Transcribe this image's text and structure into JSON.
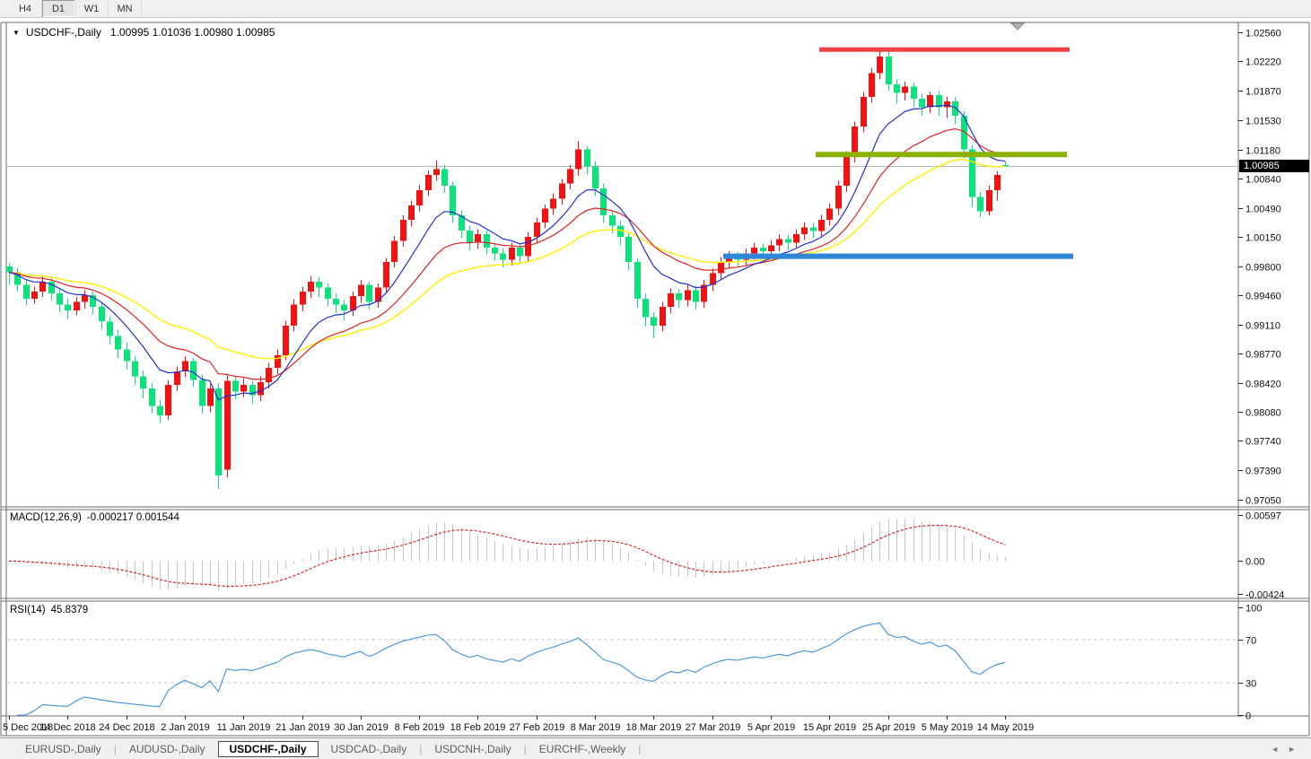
{
  "toolbar": {
    "buttons": [
      {
        "label": "H4",
        "active": false
      },
      {
        "label": "D1",
        "active": true
      },
      {
        "label": "W1",
        "active": false
      },
      {
        "label": "MN",
        "active": false
      }
    ]
  },
  "icons": {
    "collapse": "▼",
    "scroll_left": "◄",
    "scroll_right": "►"
  },
  "chart": {
    "title": "USDCHF-,Daily",
    "ohlc_text": "1.00995 1.01036 1.00980 1.00985",
    "current_price_label": "1.00985"
  },
  "chart_data": {
    "type": "candlestick",
    "symbol": "USDCHF-",
    "timeframe": "Daily",
    "ohlc_current": {
      "open": "1.00995",
      "high": "1.01036",
      "low": "1.00980",
      "close": "1.00985"
    },
    "ylim": [
      0.9696,
      1.0268
    ],
    "colors": {
      "up": "#f31212",
      "down": "#0ae27b"
    },
    "y_ticks": [
      "1.02560",
      "1.02220",
      "1.01870",
      "1.01530",
      "1.01180",
      "1.00840",
      "1.00490",
      "1.00150",
      "0.99800",
      "0.99460",
      "0.99110",
      "0.98770",
      "0.98420",
      "0.98080",
      "0.97740",
      "0.97390",
      "0.97050"
    ],
    "x_ticks": [
      {
        "bar": 0,
        "label": "5 Dec 2018"
      },
      {
        "bar": 7,
        "label": "14 Dec 2018"
      },
      {
        "bar": 14,
        "label": "24 Dec 2018"
      },
      {
        "bar": 21,
        "label": "2 Jan 2019"
      },
      {
        "bar": 28,
        "label": "11 Jan 2019"
      },
      {
        "bar": 35,
        "label": "21 Jan 2019"
      },
      {
        "bar": 42,
        "label": "30 Jan 2019"
      },
      {
        "bar": 49,
        "label": "8 Feb 2019"
      },
      {
        "bar": 56,
        "label": "18 Feb 2019"
      },
      {
        "bar": 63,
        "label": "27 Feb 2019"
      },
      {
        "bar": 70,
        "label": "8 Mar 2019"
      },
      {
        "bar": 77,
        "label": "18 Mar 2019"
      },
      {
        "bar": 84,
        "label": "27 Mar 2019"
      },
      {
        "bar": 91,
        "label": "5 Apr 2019"
      },
      {
        "bar": 98,
        "label": "15 Apr 2019"
      },
      {
        "bar": 105,
        "label": "25 Apr 2019"
      },
      {
        "bar": 112,
        "label": "5 May 2019"
      },
      {
        "bar": 119,
        "label": "14 May 2019"
      }
    ],
    "candles": [
      [
        0.998,
        0.9984,
        0.9958,
        0.9973
      ],
      [
        0.9973,
        0.9978,
        0.995,
        0.9958
      ],
      [
        0.9958,
        0.9964,
        0.9934,
        0.9942
      ],
      [
        0.9942,
        0.9956,
        0.9936,
        0.995
      ],
      [
        0.995,
        0.9968,
        0.9944,
        0.9962
      ],
      [
        0.9962,
        0.9966,
        0.994,
        0.9948
      ],
      [
        0.9948,
        0.9953,
        0.9926,
        0.9935
      ],
      [
        0.9935,
        0.9941,
        0.9918,
        0.9928
      ],
      [
        0.9928,
        0.9944,
        0.9922,
        0.9938
      ],
      [
        0.9938,
        0.9952,
        0.993,
        0.9946
      ],
      [
        0.9946,
        0.995,
        0.9924,
        0.9932
      ],
      [
        0.9932,
        0.9938,
        0.9906,
        0.9915
      ],
      [
        0.9915,
        0.9921,
        0.9888,
        0.9898
      ],
      [
        0.9898,
        0.9905,
        0.9872,
        0.9882
      ],
      [
        0.9882,
        0.989,
        0.9858,
        0.9868
      ],
      [
        0.9868,
        0.9874,
        0.984,
        0.985
      ],
      [
        0.985,
        0.9857,
        0.9824,
        0.9836
      ],
      [
        0.9836,
        0.9842,
        0.9806,
        0.9815
      ],
      [
        0.9815,
        0.9822,
        0.9795,
        0.9804
      ],
      [
        0.9804,
        0.9846,
        0.9799,
        0.984
      ],
      [
        0.984,
        0.9862,
        0.9833,
        0.9856
      ],
      [
        0.9856,
        0.9874,
        0.9849,
        0.9868
      ],
      [
        0.9868,
        0.9872,
        0.9838,
        0.9846
      ],
      [
        0.9846,
        0.9852,
        0.9806,
        0.9815
      ],
      [
        0.9815,
        0.9841,
        0.9808,
        0.9836
      ],
      [
        0.9836,
        0.9842,
        0.9717,
        0.9733
      ],
      [
        0.974,
        0.9851,
        0.9731,
        0.9845
      ],
      [
        0.9845,
        0.985,
        0.9823,
        0.9832
      ],
      [
        0.9832,
        0.9848,
        0.9825,
        0.984
      ],
      [
        0.984,
        0.9845,
        0.9818,
        0.9828
      ],
      [
        0.9828,
        0.985,
        0.9821,
        0.9843
      ],
      [
        0.9843,
        0.9866,
        0.9836,
        0.986
      ],
      [
        0.986,
        0.9882,
        0.9853,
        0.9875
      ],
      [
        0.9875,
        0.9916,
        0.9869,
        0.991
      ],
      [
        0.991,
        0.9941,
        0.9903,
        0.9935
      ],
      [
        0.9935,
        0.9956,
        0.9927,
        0.995
      ],
      [
        0.995,
        0.9968,
        0.9943,
        0.9962
      ],
      [
        0.9962,
        0.9967,
        0.9944,
        0.9955
      ],
      [
        0.9955,
        0.996,
        0.9933,
        0.9942
      ],
      [
        0.9942,
        0.9948,
        0.9925,
        0.9935
      ],
      [
        0.9935,
        0.994,
        0.9916,
        0.9928
      ],
      [
        0.9928,
        0.995,
        0.9921,
        0.9945
      ],
      [
        0.9945,
        0.9964,
        0.9937,
        0.9958
      ],
      [
        0.9958,
        0.9962,
        0.9929,
        0.9938
      ],
      [
        0.9938,
        0.996,
        0.9931,
        0.9955
      ],
      [
        0.9955,
        0.999,
        0.9949,
        0.9985
      ],
      [
        0.9985,
        1.0016,
        0.9979,
        1.001
      ],
      [
        1.001,
        1.004,
        1.0003,
        1.0035
      ],
      [
        1.0035,
        1.0058,
        1.0027,
        1.0052
      ],
      [
        1.0052,
        1.0076,
        1.0045,
        1.007
      ],
      [
        1.007,
        1.0093,
        1.0063,
        1.0088
      ],
      [
        1.0088,
        1.0105,
        1.0081,
        1.0095
      ],
      [
        1.0095,
        1.01,
        1.0067,
        1.0075
      ],
      [
        1.0075,
        1.008,
        1.0031,
        1.004
      ],
      [
        1.004,
        1.0046,
        1.0013,
        1.0022
      ],
      [
        1.0022,
        1.0028,
        0.9999,
        1.0008
      ],
      [
        1.0008,
        1.0024,
        1.0001,
        1.0018
      ],
      [
        1.0018,
        1.0023,
        0.9994,
        1.0002
      ],
      [
        1.0002,
        1.0008,
        0.9987,
        0.9995
      ],
      [
        0.9995,
        1.0001,
        0.9979,
        0.9988
      ],
      [
        0.9988,
        1.0008,
        0.9981,
        1.0002
      ],
      [
        1.0002,
        1.0007,
        0.9983,
        0.9992
      ],
      [
        0.9992,
        1.002,
        0.9985,
        1.0015
      ],
      [
        1.0015,
        1.0037,
        1.0007,
        1.0032
      ],
      [
        1.0032,
        1.0053,
        1.0025,
        1.0048
      ],
      [
        1.0048,
        1.0066,
        1.0041,
        1.006
      ],
      [
        1.006,
        1.0083,
        1.0053,
        1.0078
      ],
      [
        1.0078,
        1.01,
        1.0071,
        1.0095
      ],
      [
        1.0095,
        1.0128,
        1.0087,
        1.0118
      ],
      [
        1.0118,
        1.0122,
        1.0089,
        1.0098
      ],
      [
        1.0098,
        1.0104,
        1.0063,
        1.0072
      ],
      [
        1.0072,
        1.0078,
        1.0031,
        1.004
      ],
      [
        1.004,
        1.0046,
        1.0019,
        1.0028
      ],
      [
        1.0028,
        1.0034,
        1.0005,
        1.0015
      ],
      [
        1.0015,
        1.002,
        0.9975,
        0.9985
      ],
      [
        0.9985,
        0.999,
        0.9931,
        0.9942
      ],
      [
        0.9942,
        0.9948,
        0.9909,
        0.992
      ],
      [
        0.992,
        0.9926,
        0.9895,
        0.991
      ],
      [
        0.991,
        0.9938,
        0.9903,
        0.9932
      ],
      [
        0.9932,
        0.9954,
        0.9925,
        0.9948
      ],
      [
        0.9948,
        0.9953,
        0.9931,
        0.994
      ],
      [
        0.994,
        0.9958,
        0.9933,
        0.9952
      ],
      [
        0.9952,
        0.9957,
        0.9929,
        0.9938
      ],
      [
        0.9938,
        0.9964,
        0.9931,
        0.9958
      ],
      [
        0.9958,
        0.9978,
        0.9951,
        0.9972
      ],
      [
        0.9972,
        0.9991,
        0.9965,
        0.9985
      ],
      [
        0.9985,
        0.9998,
        0.9978,
        0.9992
      ],
      [
        0.9992,
        0.9997,
        0.9979,
        0.9988
      ],
      [
        0.9988,
        1.0001,
        0.9981,
        0.9995
      ],
      [
        0.9995,
        1.0008,
        0.9988,
        1.0002
      ],
      [
        1.0002,
        1.0007,
        0.9989,
        0.9998
      ],
      [
        0.9998,
        1.0011,
        0.9991,
        1.0005
      ],
      [
        1.0005,
        1.0018,
        0.9998,
        1.0012
      ],
      [
        1.0012,
        1.0017,
        0.9999,
        1.0008
      ],
      [
        1.0008,
        1.0024,
        1.0001,
        1.0018
      ],
      [
        1.0018,
        1.0032,
        1.0011,
        1.0026
      ],
      [
        1.0026,
        1.0031,
        1.0013,
        1.0022
      ],
      [
        1.0022,
        1.0041,
        1.0015,
        1.0035
      ],
      [
        1.0035,
        1.0054,
        1.0028,
        1.0048
      ],
      [
        1.0048,
        1.0081,
        1.0041,
        1.0075
      ],
      [
        1.0075,
        1.0116,
        1.0068,
        1.011
      ],
      [
        1.011,
        1.0151,
        1.0103,
        1.0145
      ],
      [
        1.0145,
        1.0186,
        1.0138,
        1.018
      ],
      [
        1.018,
        1.0214,
        1.0173,
        1.0208
      ],
      [
        1.0208,
        1.0236,
        1.0201,
        1.0228
      ],
      [
        1.0228,
        1.0233,
        1.0187,
        1.0195
      ],
      [
        1.0195,
        1.0201,
        1.0172,
        1.0185
      ],
      [
        1.0185,
        1.0198,
        1.0176,
        1.0192
      ],
      [
        1.0192,
        1.0197,
        1.0168,
        1.0178
      ],
      [
        1.0178,
        1.0184,
        1.0158,
        1.0168
      ],
      [
        1.0168,
        1.0186,
        1.0161,
        1.0182
      ],
      [
        1.0182,
        1.0187,
        1.0158,
        1.0168
      ],
      [
        1.0168,
        1.018,
        1.0155,
        1.0175
      ],
      [
        1.0175,
        1.018,
        1.0148,
        1.0158
      ],
      [
        1.0158,
        1.0163,
        1.0108,
        1.0118
      ],
      [
        1.0118,
        1.0123,
        1.005,
        1.0062
      ],
      [
        1.0062,
        1.0068,
        1.0038,
        1.0045
      ],
      [
        1.0045,
        1.0075,
        1.004,
        1.007
      ],
      [
        1.007,
        1.0092,
        1.0058,
        1.0088
      ],
      [
        1.00995,
        1.01036,
        1.0098,
        1.00985
      ]
    ],
    "moving_averages": [
      {
        "name": "ma-slow-yellow",
        "type": "ema",
        "period": 32,
        "color": "#fff000",
        "width": 1.4
      },
      {
        "name": "ma-mid-red",
        "type": "ema",
        "period": 18,
        "color": "#e02222",
        "width": 1.2
      },
      {
        "name": "ma-fast-blue",
        "type": "ema",
        "period": 9,
        "color": "#222fd0",
        "width": 1.2
      }
    ],
    "hlines": [
      {
        "name": "resistance-line-red",
        "price": 1.0236,
        "from_bar": 96.8,
        "to_bar": 126.7,
        "color": "#f14040",
        "thickness": 5
      },
      {
        "name": "broken-support-line-olive",
        "price": 1.0112,
        "from_bar": 96.4,
        "to_bar": 126.4,
        "color": "#8ab103",
        "thickness": 6
      },
      {
        "name": "support-line-blue",
        "price": 0.9992,
        "from_bar": 85.3,
        "to_bar": 127.1,
        "color": "#2f87d8",
        "thickness": 6
      }
    ],
    "current_price": {
      "value": 1.00985,
      "label": "1.00985"
    }
  },
  "macd_panel": {
    "label": "MACD(12,26,9)",
    "current_values": "-0.000217 0.001544",
    "params": [
      12,
      26,
      9
    ],
    "ylim": [
      -0.0045,
      0.0062
    ],
    "ticks": [
      {
        "v": 0.00597,
        "label": "0.00597"
      },
      {
        "v": 0,
        "label": "0.00"
      },
      {
        "v": -0.00424,
        "label": "-0.00424"
      }
    ],
    "histogram_color": "#c6c6c6",
    "signal_color": "#dd2222"
  },
  "rsi_panel": {
    "label": "RSI(14)",
    "current_value": "45.8379",
    "period": 14,
    "ylim": [
      0,
      100
    ],
    "ticks": [
      {
        "v": 100,
        "label": "100"
      },
      {
        "v": 70,
        "label": "70"
      },
      {
        "v": 30,
        "label": "30"
      },
      {
        "v": 0,
        "label": "0"
      }
    ],
    "levels": [
      70,
      30
    ],
    "color": "#4090d9"
  },
  "tabs": {
    "items": [
      {
        "label": "EURUSD-,Daily",
        "active": false
      },
      {
        "label": "AUDUSD-,Daily",
        "active": false
      },
      {
        "label": "USDCHF-,Daily",
        "active": true
      },
      {
        "label": "USDCAD-,Daily",
        "active": false
      },
      {
        "label": "USDCNH-,Daily",
        "active": false
      },
      {
        "label": "EURCHF-,Weekly",
        "active": false
      }
    ]
  }
}
